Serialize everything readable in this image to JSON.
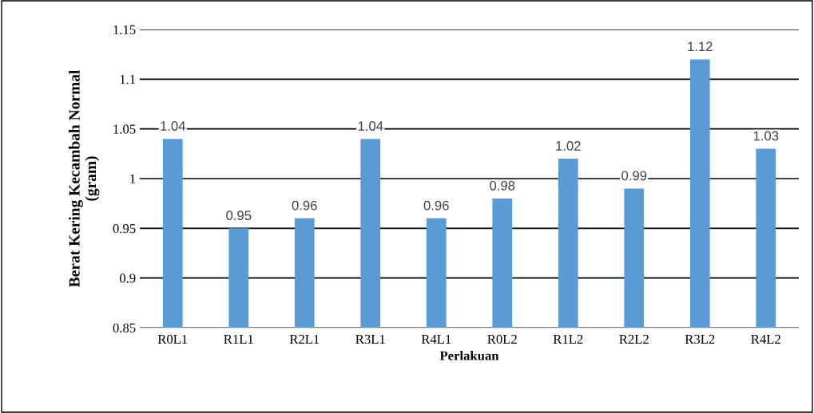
{
  "chart_data": {
    "type": "bar",
    "xlabel": "Perlakuan",
    "ylabel": "Berat Kering Kecambah Normal\n(gram)",
    "categories": [
      "R0L1",
      "R1L1",
      "R2L1",
      "R3L1",
      "R4L1",
      "R0L2",
      "R1L2",
      "R2L2",
      "R3L2",
      "R4L2"
    ],
    "values": [
      1.04,
      0.95,
      0.96,
      1.04,
      0.96,
      0.98,
      1.02,
      0.99,
      1.12,
      1.03
    ],
    "color": "#5b9bd5",
    "ylim": [
      0.85,
      1.15
    ],
    "yticks": [
      0.85,
      0.9,
      0.95,
      1,
      1.05,
      1.1,
      1.15
    ],
    "grid": "y",
    "data_labels": true
  }
}
